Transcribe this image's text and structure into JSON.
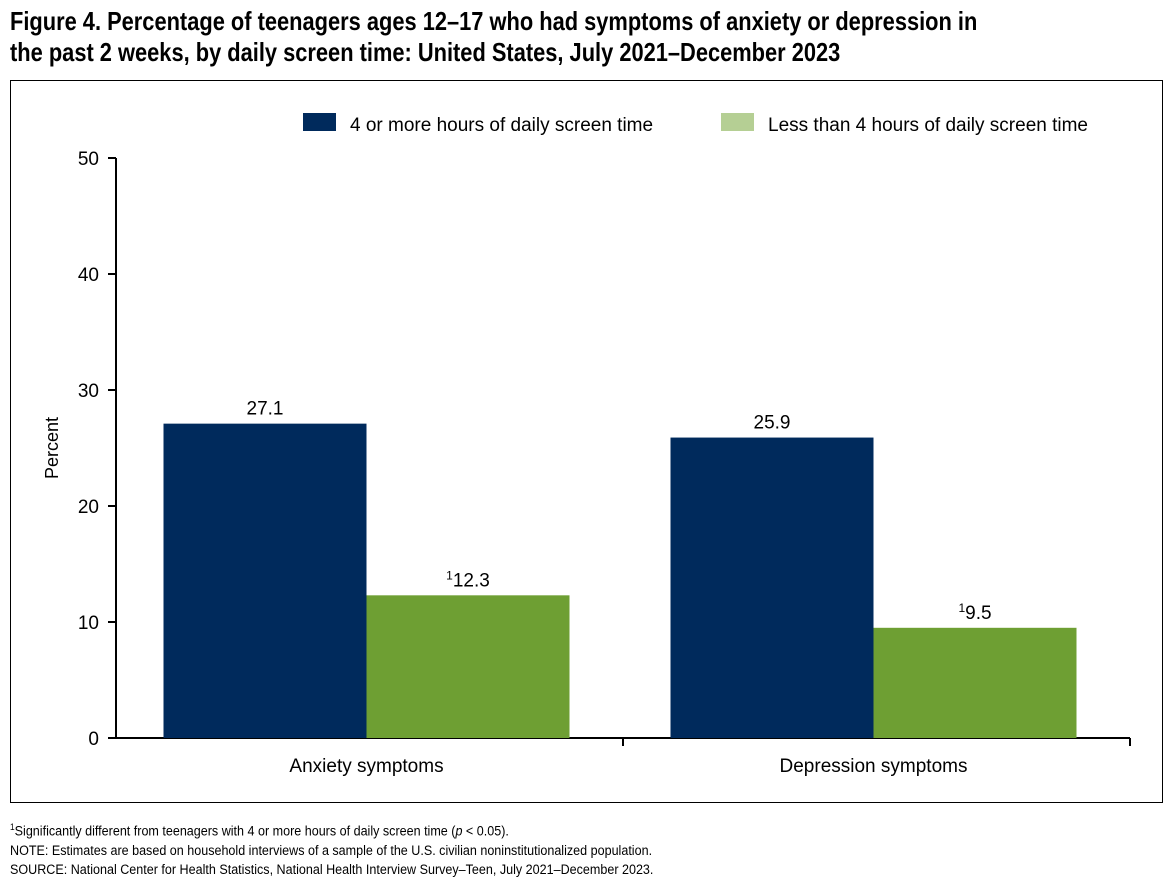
{
  "chart_data": {
    "type": "bar",
    "title": "Figure 4. Percentage of teenagers ages 12–17 who had symptoms of anxiety or depression in the past 2 weeks, by daily screen time: United States, July 2021–December 2023",
    "title_lines": [
      "Figure 4. Percentage of teenagers ages 12–17 who had symptoms of anxiety or depression in",
      "the past 2 weeks, by daily screen time: United States, July 2021–December 2023"
    ],
    "categories": [
      "Anxiety symptoms",
      "Depression symptoms"
    ],
    "series": [
      {
        "name": "4 or more hours of daily screen time",
        "values": [
          27.1,
          25.9
        ],
        "labels": [
          "27.1",
          "25.9"
        ],
        "footnote": [
          "",
          ""
        ],
        "color": "#002a5c",
        "legend_color": "#002a5c"
      },
      {
        "name": "Less than 4 hours of daily screen time",
        "values": [
          12.3,
          9.5
        ],
        "labels": [
          "12.3",
          "9.5"
        ],
        "footnote": [
          "1",
          "1"
        ],
        "color": "#6e9f33",
        "legend_color": "#b5cf94"
      }
    ],
    "xlabel": "",
    "ylabel": "Percent",
    "ylim": [
      0,
      50
    ],
    "yticks": [
      0,
      10,
      20,
      30,
      40,
      50
    ],
    "grid": false,
    "legend_position": "top-right"
  },
  "notes": {
    "footnote_mark": "1",
    "footnote_pre": "Significantly different from teenagers with 4 or more hours of daily screen time (",
    "footnote_p": "p",
    "footnote_post": " < 0.05).",
    "note": "NOTE: Estimates are based on household interviews of a sample of the U.S. civilian noninstitutionalized population.",
    "source": "SOURCE: National Center for Health Statistics, National Health Interview Survey–Teen, July 2021–December 2023."
  }
}
